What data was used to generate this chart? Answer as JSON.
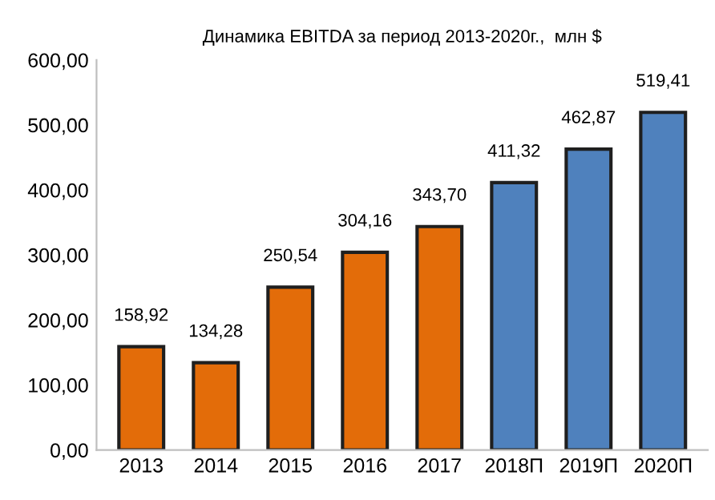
{
  "chart_data": {
    "type": "bar",
    "title": "Динамика EBITDA за период 2013-2020г.,  млн $",
    "categories": [
      "2013",
      "2014",
      "2015",
      "2016",
      "2017",
      "2018П",
      "2019П",
      "2020П"
    ],
    "values": [
      158.92,
      134.28,
      250.54,
      304.16,
      343.7,
      411.32,
      462.87,
      519.41
    ],
    "colors": [
      "#e36c09",
      "#e36c09",
      "#e36c09",
      "#e36c09",
      "#e36c09",
      "#4f81bd",
      "#4f81bd",
      "#4f81bd"
    ],
    "value_labels": [
      "158,92",
      "134,28",
      "250,54",
      "304,16",
      "343,70",
      "411,32",
      "462,87",
      "519,41"
    ],
    "ylim": [
      0,
      600
    ],
    "yticks": [
      {
        "value": 0,
        "label": "0,00"
      },
      {
        "value": 100,
        "label": "100,00"
      },
      {
        "value": 200,
        "label": "200,00"
      },
      {
        "value": 300,
        "label": "300,00"
      },
      {
        "value": 400,
        "label": "400,00"
      },
      {
        "value": 500,
        "label": "500,00"
      },
      {
        "value": 600,
        "label": "600,00"
      }
    ],
    "grid": false,
    "legend": false
  }
}
